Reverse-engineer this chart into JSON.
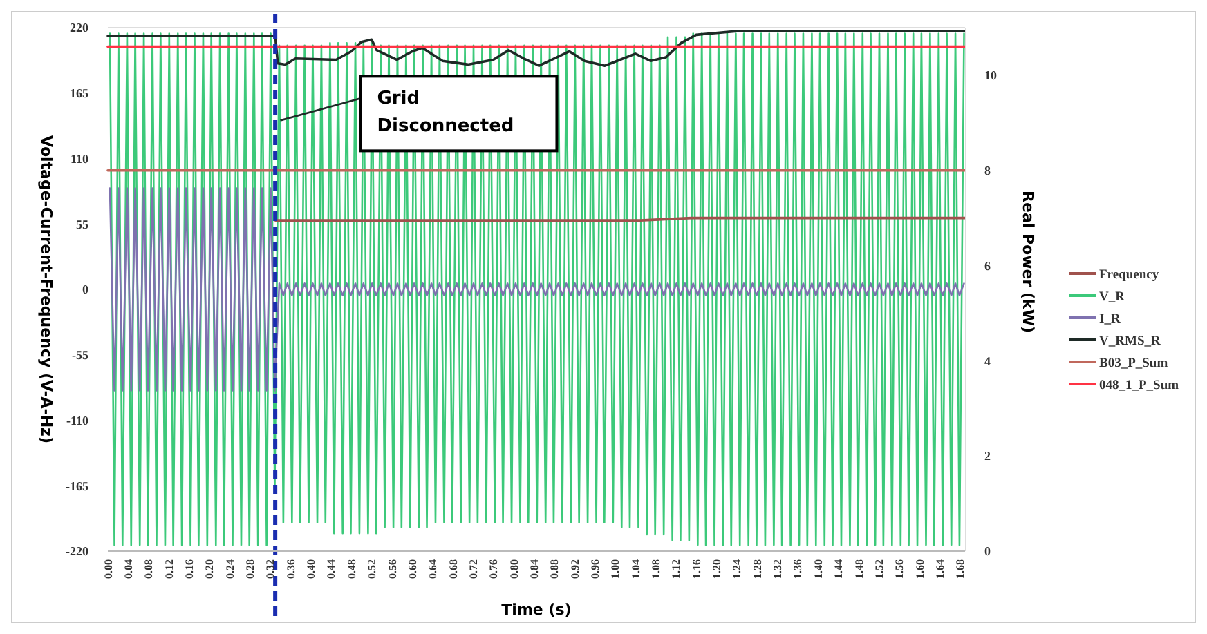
{
  "chart_data": {
    "type": "line",
    "xlabel": "Time (s)",
    "ylabel": "Voltage-Current-Frequency (V-A-Hz)",
    "y2label": "Real Power (kW)",
    "xlim": [
      0,
      1.69
    ],
    "xticks": [
      {
        "value": 0,
        "label": "0.00"
      },
      {
        "value": 0.04,
        "label": "0.04"
      },
      {
        "value": 0.08,
        "label": "0.08"
      },
      {
        "value": 0.12,
        "label": "0.12"
      },
      {
        "value": 0.16,
        "label": "0.16"
      },
      {
        "value": 0.2,
        "label": "0.20"
      },
      {
        "value": 0.24,
        "label": "0.24"
      },
      {
        "value": 0.28,
        "label": "0.28"
      },
      {
        "value": 0.32,
        "label": "0.32"
      },
      {
        "value": 0.36,
        "label": "0.36"
      },
      {
        "value": 0.4,
        "label": "0.40"
      },
      {
        "value": 0.44,
        "label": "0.44"
      },
      {
        "value": 0.48,
        "label": "0.48"
      },
      {
        "value": 0.52,
        "label": "0.52"
      },
      {
        "value": 0.56,
        "label": "0.56"
      },
      {
        "value": 0.6,
        "label": "0.60"
      },
      {
        "value": 0.64,
        "label": "0.64"
      },
      {
        "value": 0.68,
        "label": "0.68"
      },
      {
        "value": 0.72,
        "label": "0.72"
      },
      {
        "value": 0.76,
        "label": "0.76"
      },
      {
        "value": 0.8,
        "label": "0.80"
      },
      {
        "value": 0.84,
        "label": "0.84"
      },
      {
        "value": 0.88,
        "label": "0.88"
      },
      {
        "value": 0.92,
        "label": "0.92"
      },
      {
        "value": 0.96,
        "label": "0.96"
      },
      {
        "value": 1,
        "label": "1.00"
      },
      {
        "value": 1.04,
        "label": "1.04"
      },
      {
        "value": 1.08,
        "label": "1.08"
      },
      {
        "value": 1.12,
        "label": "1.12"
      },
      {
        "value": 1.16,
        "label": "1.16"
      },
      {
        "value": 1.2,
        "label": "1.20"
      },
      {
        "value": 1.24,
        "label": "1.24"
      },
      {
        "value": 1.28,
        "label": "1.28"
      },
      {
        "value": 1.32,
        "label": "1.32"
      },
      {
        "value": 1.36,
        "label": "1.36"
      },
      {
        "value": 1.4,
        "label": "1.40"
      },
      {
        "value": 1.44,
        "label": "1.44"
      },
      {
        "value": 1.48,
        "label": "1.48"
      },
      {
        "value": 1.52,
        "label": "1.52"
      },
      {
        "value": 1.56,
        "label": "1.56"
      },
      {
        "value": 1.6,
        "label": "1.60"
      },
      {
        "value": 1.64,
        "label": "1.64"
      },
      {
        "value": 1.68,
        "label": "1.68"
      }
    ],
    "ylim": [
      -220,
      220
    ],
    "yticks": [
      -220,
      -165,
      -110,
      -55,
      0,
      55,
      110,
      165,
      220
    ],
    "y2lim": [
      0,
      11
    ],
    "y2ticks": [
      0,
      2,
      4,
      6,
      8,
      10
    ],
    "legend": "right",
    "x": [
      0.004,
      0.013,
      0.021,
      0.029,
      0.038,
      0.046,
      0.054,
      0.063,
      0.071,
      0.079,
      0.088,
      0.096,
      0.104,
      0.113,
      0.121,
      0.129,
      0.138,
      0.146,
      0.154,
      0.163,
      0.171,
      0.179,
      0.188,
      0.196,
      0.204,
      0.213,
      0.221,
      0.229,
      0.238,
      0.246,
      0.254,
      0.263,
      0.271,
      0.279,
      0.288,
      0.296,
      0.304,
      0.313,
      0.321,
      0.329,
      0.338,
      0.346,
      0.354,
      0.363,
      0.371,
      0.379,
      0.388,
      0.396,
      0.404,
      0.413,
      0.421,
      0.429,
      0.438,
      0.446,
      0.454,
      0.463,
      0.471,
      0.479,
      0.488,
      0.496,
      0.504,
      0.513,
      0.521,
      0.529,
      0.538,
      0.546,
      0.554,
      0.563,
      0.571,
      0.579,
      0.588,
      0.596,
      0.604,
      0.613,
      0.621,
      0.629,
      0.638,
      0.646,
      0.654,
      0.663,
      0.671,
      0.679,
      0.688,
      0.696,
      0.704,
      0.713,
      0.721,
      0.729,
      0.738,
      0.746,
      0.754,
      0.763,
      0.771,
      0.779,
      0.788,
      0.796,
      0.804,
      0.813,
      0.821,
      0.829,
      0.838,
      0.846,
      0.854,
      0.863,
      0.871,
      0.879,
      0.888,
      0.896,
      0.904,
      0.913,
      0.921,
      0.929,
      0.938,
      0.946,
      0.954,
      0.963,
      0.971,
      0.979,
      0.988,
      0.996,
      1.004,
      1.013,
      1.021,
      1.029,
      1.038,
      1.046,
      1.054,
      1.063,
      1.071,
      1.079,
      1.088,
      1.096,
      1.104,
      1.113,
      1.121,
      1.129,
      1.138,
      1.146,
      1.154,
      1.163,
      1.171,
      1.179,
      1.188,
      1.196,
      1.204,
      1.213,
      1.221,
      1.229,
      1.238,
      1.246,
      1.254,
      1.263,
      1.271,
      1.279,
      1.288,
      1.296,
      1.304,
      1.313,
      1.321,
      1.329,
      1.338,
      1.346,
      1.354,
      1.363,
      1.371,
      1.379,
      1.388,
      1.396,
      1.404,
      1.413,
      1.421,
      1.429,
      1.438,
      1.446,
      1.454,
      1.463,
      1.471,
      1.479,
      1.488,
      1.496,
      1.504,
      1.513,
      1.521,
      1.529,
      1.538,
      1.546,
      1.554,
      1.563,
      1.571,
      1.579,
      1.588,
      1.596,
      1.604,
      1.613,
      1.621,
      1.629,
      1.638,
      1.646,
      1.654,
      1.663,
      1.671,
      1.679,
      1.688
    ],
    "series": [
      {
        "name": "Frequency",
        "color": "#a0524d",
        "x": [
          0.33,
          0.6,
          1.05,
          1.15,
          1.69
        ],
        "values": [
          58,
          58,
          58,
          60,
          60
        ]
      },
      {
        "name": "V_R",
        "color": "#3cc97a",
        "values": [
          215,
          -215,
          215,
          -215,
          215,
          -215,
          215,
          -215,
          215,
          -215,
          215,
          -215,
          215,
          -215,
          215,
          -215,
          215,
          -215,
          215,
          -215,
          215,
          -215,
          215,
          -215,
          215,
          -215,
          215,
          -215,
          215,
          -215,
          215,
          -215,
          215,
          -215,
          215,
          -215,
          215,
          -215,
          215,
          -170,
          205,
          -196,
          205,
          -196,
          205,
          -196,
          205,
          -196,
          205,
          -196,
          205,
          -196,
          207,
          -205,
          207,
          -205,
          207,
          -205,
          207,
          -205,
          207,
          -205,
          207,
          -205,
          205,
          -200,
          205,
          -200,
          205,
          -200,
          205,
          -200,
          205,
          -200,
          205,
          -200,
          205,
          -196,
          205,
          -196,
          205,
          -196,
          205,
          -196,
          205,
          -196,
          205,
          -196,
          205,
          -196,
          205,
          -196,
          205,
          -196,
          205,
          -196,
          205,
          -196,
          205,
          -196,
          205,
          -196,
          205,
          -196,
          205,
          -196,
          205,
          -196,
          205,
          -196,
          205,
          -196,
          205,
          -196,
          205,
          -196,
          205,
          -196,
          205,
          -196,
          205,
          -200,
          205,
          -200,
          205,
          -200,
          205,
          -206,
          205,
          -206,
          205,
          -206,
          212,
          -211,
          212,
          -211,
          212,
          -211,
          215,
          -215,
          215,
          -215,
          215,
          -215,
          215,
          -215,
          215,
          -215,
          215,
          -215,
          215,
          -215,
          215,
          -215,
          215,
          -215,
          215,
          -215,
          215,
          -215,
          215,
          -215,
          215,
          -215,
          215,
          -215,
          215,
          -215,
          215,
          -215,
          215,
          -215,
          215,
          -215,
          215,
          -215,
          215,
          -215,
          215,
          -215,
          215,
          -215,
          215,
          -215,
          215,
          -215,
          215,
          -215,
          215,
          -215,
          215,
          -215,
          215,
          -215,
          215,
          -215,
          215,
          -215,
          215,
          -215,
          215,
          -215,
          215
        ]
      },
      {
        "name": "I_R",
        "color": "#7f72b0",
        "values": [
          85,
          -85,
          85,
          -85,
          85,
          -85,
          85,
          -85,
          85,
          -85,
          85,
          -85,
          85,
          -85,
          85,
          -85,
          85,
          -85,
          85,
          -85,
          85,
          -85,
          85,
          -85,
          85,
          -85,
          85,
          -85,
          85,
          -85,
          85,
          -85,
          85,
          -85,
          85,
          -85,
          85,
          -85,
          85,
          -85,
          5,
          -5,
          5,
          -5,
          5,
          -5,
          5,
          -5,
          5,
          -5,
          5,
          -5,
          5,
          -5,
          5,
          -5,
          5,
          -5,
          5,
          -5,
          5,
          -5,
          5,
          -5,
          5,
          -5,
          5,
          -5,
          5,
          -5,
          5,
          -5,
          5,
          -5,
          5,
          -5,
          5,
          -5,
          5,
          -5,
          5,
          -5,
          5,
          -5,
          5,
          -5,
          5,
          -5,
          5,
          -5,
          5,
          -5,
          5,
          -5,
          5,
          -5,
          5,
          -5,
          5,
          -5,
          5,
          -5,
          5,
          -5,
          5,
          -5,
          5,
          -5,
          5,
          -5,
          5,
          -5,
          5,
          -5,
          5,
          -5,
          5,
          -5,
          5,
          -5,
          5,
          -5,
          5,
          -5,
          5,
          -5,
          5,
          -5,
          5,
          -5,
          5,
          -5,
          5,
          -5,
          5,
          -5,
          5,
          -5,
          5,
          -5,
          5,
          -5,
          5,
          -5,
          5,
          -5,
          5,
          -5,
          5,
          -5,
          5,
          -5,
          5,
          -5,
          5,
          -5,
          5,
          -5,
          5,
          -5,
          5,
          -5,
          5,
          -5,
          5,
          -5,
          5,
          -5,
          5,
          -5,
          5,
          -5,
          5,
          -5,
          5,
          -5,
          5,
          -5,
          5,
          -5,
          5,
          -5,
          5,
          -5,
          5,
          -5,
          5,
          -5,
          5,
          -5,
          5,
          -5,
          5,
          -5,
          5,
          -5,
          5,
          -5,
          5,
          -5,
          5,
          -5,
          5
        ]
      },
      {
        "name": "V_RMS_R",
        "color": "#1e2a26",
        "x": [
          0,
          0.33,
          0.335,
          0.35,
          0.37,
          0.45,
          0.48,
          0.5,
          0.52,
          0.53,
          0.57,
          0.6,
          0.62,
          0.66,
          0.71,
          0.76,
          0.79,
          0.82,
          0.85,
          0.89,
          0.91,
          0.94,
          0.98,
          1.01,
          1.04,
          1.07,
          1.1,
          1.13,
          1.16,
          1.24,
          1.69
        ],
        "values": [
          213,
          213,
          190,
          189,
          194,
          193,
          200,
          208,
          210,
          201,
          193,
          200,
          203,
          192,
          189,
          193,
          201,
          194,
          188,
          196,
          200,
          192,
          188,
          193,
          198,
          192,
          195,
          207,
          214,
          217,
          217
        ]
      },
      {
        "name": "B03_P_Sum",
        "color": "#c0685c",
        "axis": "y2",
        "x": [
          0,
          1.69
        ],
        "values": [
          8,
          8
        ]
      },
      {
        "name": "048_1_P_Sum",
        "color": "#ff3344",
        "axis": "y2",
        "x": [
          0,
          1.69
        ],
        "values": [
          10.6,
          10.6
        ]
      }
    ],
    "ref_lines": [
      {
        "axis": "x",
        "value": 0.33,
        "color": "#1a2db0",
        "line_style": "dashed"
      }
    ],
    "annotations": [
      {
        "text": "Grid Disconnected",
        "x": 0.34,
        "y": 142
      }
    ]
  }
}
